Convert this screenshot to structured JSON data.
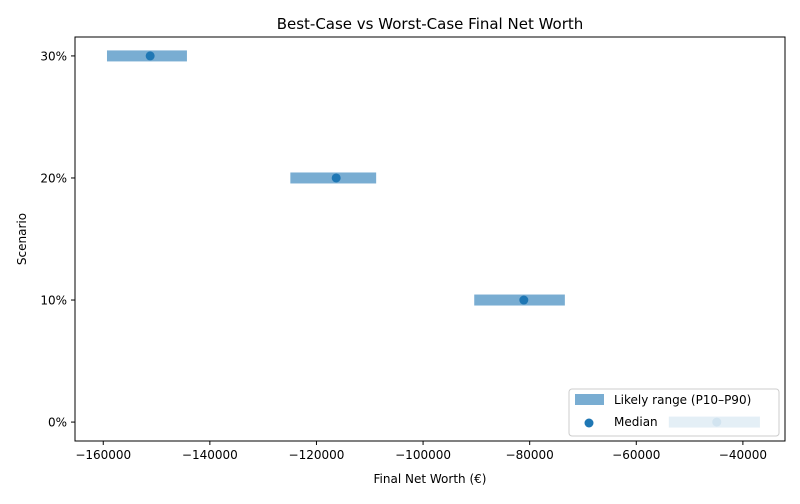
{
  "chart_data": {
    "type": "range-bar",
    "orientation": "horizontal",
    "title": "Best-Case vs Worst-Case Final Net Worth",
    "xlabel": "Final Net Worth (€)",
    "ylabel": "Scenario",
    "categories": [
      "0%",
      "10%",
      "20%",
      "30%"
    ],
    "series": [
      {
        "name": "Likely range (P10–P90)",
        "kind": "range",
        "color": "#1f77b4",
        "alpha": 0.6,
        "low": [
          -53900,
          -90400,
          -124900,
          -159300
        ],
        "high": [
          -36800,
          -73400,
          -108800,
          -144300
        ]
      },
      {
        "name": "Median",
        "kind": "point",
        "color": "#1f77b4",
        "values": [
          -44900,
          -81100,
          -116300,
          -151200
        ]
      }
    ],
    "xlim": [
      -165300,
      -32100
    ],
    "xticks": [
      -160000,
      -140000,
      -120000,
      -100000,
      -80000,
      -60000,
      -40000
    ],
    "xtick_labels": [
      "−160000",
      "−140000",
      "−120000",
      "−100000",
      "−80000",
      "−60000",
      "−40000"
    ],
    "grid": false,
    "legend": {
      "placement": "lower-right",
      "entries": [
        "Likely range (P10–P90)",
        "Median"
      ]
    }
  }
}
